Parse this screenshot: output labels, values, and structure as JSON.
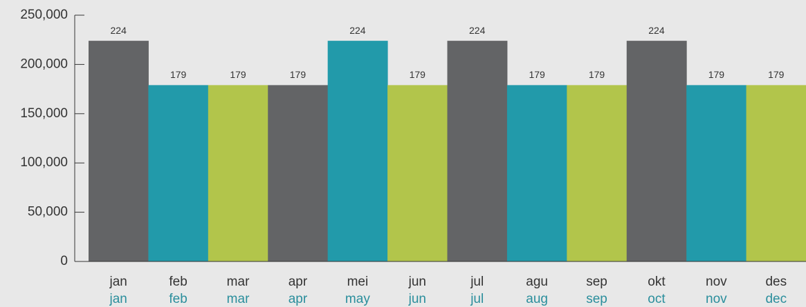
{
  "chart_data": {
    "type": "bar",
    "categories": [
      "jan",
      "feb",
      "mar",
      "apr",
      "mei",
      "jun",
      "jul",
      "agu",
      "sep",
      "okt",
      "nov",
      "des"
    ],
    "category_translations": [
      "jan",
      "feb",
      "mar",
      "apr",
      "may",
      "jun",
      "jul",
      "aug",
      "sep",
      "oct",
      "nov",
      "dec"
    ],
    "values": [
      224000,
      179000,
      179000,
      179000,
      224000,
      179000,
      224000,
      179000,
      179000,
      224000,
      179000,
      179000
    ],
    "value_labels": [
      "224",
      "179",
      "179",
      "179",
      "224",
      "179",
      "224",
      "179",
      "179",
      "224",
      "179",
      "179"
    ],
    "colors": [
      "#636466",
      "#229aaa",
      "#b2c54b",
      "#636466",
      "#229aaa",
      "#b2c54b",
      "#636466",
      "#229aaa",
      "#b2c54b",
      "#636466",
      "#229aaa",
      "#b2c54b"
    ],
    "ylim": [
      0,
      250000
    ],
    "yticks": [
      {
        "value": 0,
        "label": "0"
      },
      {
        "value": 50000,
        "label": "50,000"
      },
      {
        "value": 100000,
        "label": "100,000"
      },
      {
        "value": 150000,
        "label": "150,000"
      },
      {
        "value": 200000,
        "label": "200,000"
      },
      {
        "value": 250000,
        "label": "250,000"
      }
    ],
    "grid": false
  }
}
